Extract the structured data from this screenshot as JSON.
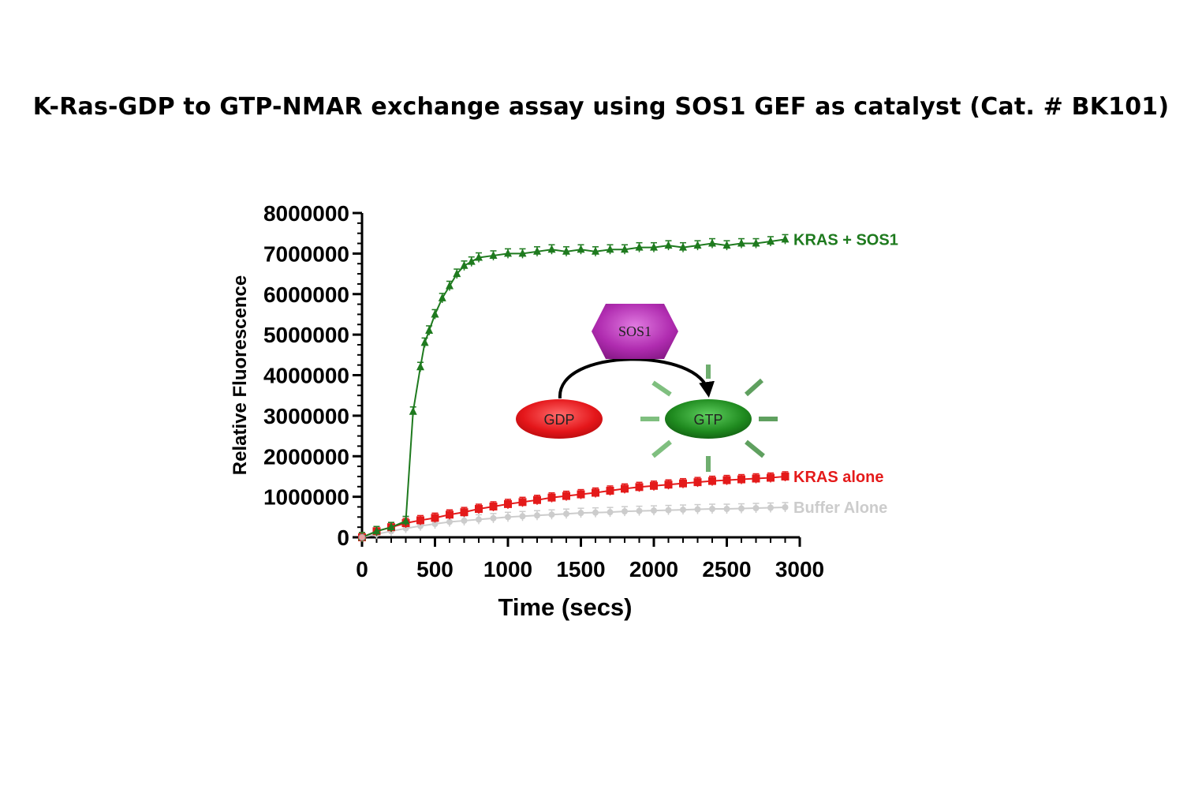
{
  "title": "K-Ras-GDP to GTP-NMAR exchange assay using SOS1 GEF as catalyst (Cat. # BK101)",
  "chart_data": {
    "type": "line",
    "title": "K-Ras-GDP to GTP-NMAR exchange assay using SOS1 GEF as catalyst (Cat. # BK101)",
    "xlabel": "Time (secs)",
    "ylabel": "Relative Fluorescence",
    "xlim": [
      0,
      3000
    ],
    "ylim": [
      0,
      8000000
    ],
    "xticks": [
      0,
      500,
      1000,
      1500,
      2000,
      2500,
      3000
    ],
    "xtick_labels": [
      "0",
      "500",
      "1000",
      "1500",
      "2000",
      "2500",
      "3000"
    ],
    "yticks": [
      0,
      1000000,
      2000000,
      3000000,
      4000000,
      5000000,
      6000000,
      7000000,
      8000000
    ],
    "ytick_labels": [
      "0",
      "1000000",
      "2000000",
      "3000000",
      "4000000",
      "5000000",
      "6000000",
      "7000000",
      "8000000"
    ],
    "legend_position": "right, at end of each series",
    "series": [
      {
        "name": "KRAS + SOS1",
        "color": "#1e7a1e",
        "marker": "triangle",
        "x": [
          0,
          100,
          200,
          300,
          350,
          400,
          430,
          460,
          500,
          550,
          600,
          650,
          700,
          750,
          800,
          900,
          1000,
          1100,
          1200,
          1300,
          1400,
          1500,
          1600,
          1700,
          1800,
          1900,
          2000,
          2100,
          2200,
          2300,
          2400,
          2500,
          2600,
          2700,
          2800,
          2900
        ],
        "y": [
          0,
          150000,
          250000,
          400000,
          3100000,
          4200000,
          4800000,
          5100000,
          5500000,
          5900000,
          6200000,
          6500000,
          6700000,
          6800000,
          6900000,
          6950000,
          7000000,
          7000000,
          7050000,
          7100000,
          7050000,
          7100000,
          7050000,
          7100000,
          7100000,
          7150000,
          7150000,
          7200000,
          7150000,
          7200000,
          7250000,
          7200000,
          7250000,
          7250000,
          7300000,
          7350000
        ]
      },
      {
        "name": "KRAS alone",
        "color": "#e41a1a",
        "marker": "square",
        "x": [
          0,
          100,
          200,
          300,
          400,
          500,
          600,
          700,
          800,
          900,
          1000,
          1100,
          1200,
          1300,
          1400,
          1500,
          1600,
          1700,
          1800,
          1900,
          2000,
          2100,
          2200,
          2300,
          2400,
          2500,
          2600,
          2700,
          2800,
          2900
        ],
        "y": [
          0,
          150000,
          250000,
          350000,
          420000,
          480000,
          560000,
          620000,
          700000,
          760000,
          820000,
          870000,
          920000,
          980000,
          1020000,
          1060000,
          1100000,
          1150000,
          1200000,
          1240000,
          1270000,
          1300000,
          1330000,
          1360000,
          1390000,
          1410000,
          1430000,
          1450000,
          1470000,
          1500000
        ]
      },
      {
        "name": "Buffer Alone",
        "color": "#cccccc",
        "marker": "circle",
        "x": [
          0,
          100,
          200,
          300,
          400,
          500,
          600,
          700,
          800,
          900,
          1000,
          1100,
          1200,
          1300,
          1400,
          1500,
          1600,
          1700,
          1800,
          1900,
          2000,
          2100,
          2200,
          2300,
          2400,
          2500,
          2600,
          2700,
          2800,
          2900
        ],
        "y": [
          0,
          80000,
          150000,
          220000,
          280000,
          330000,
          380000,
          410000,
          440000,
          470000,
          500000,
          520000,
          540000,
          560000,
          580000,
          600000,
          610000,
          620000,
          640000,
          650000,
          660000,
          670000,
          680000,
          690000,
          700000,
          700000,
          710000,
          720000,
          730000,
          740000
        ]
      }
    ]
  },
  "diagram": {
    "enzyme": "SOS1",
    "substrate": "GDP",
    "product": "GTP",
    "enzyme_color": "#a020a0",
    "substrate_color": "#e4161a",
    "product_color": "#1f8a1f"
  }
}
